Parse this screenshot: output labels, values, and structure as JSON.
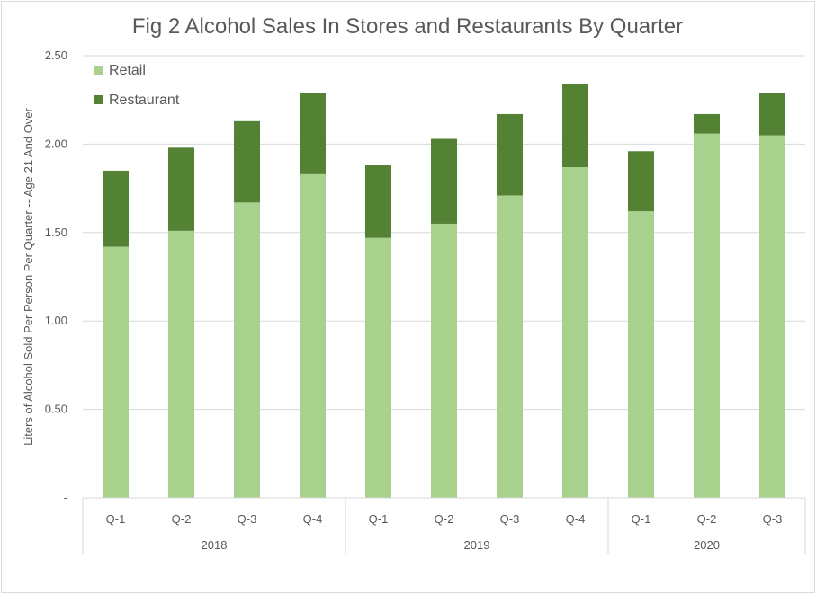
{
  "chart_data": {
    "type": "bar",
    "stacked": true,
    "title": "Fig 2 Alcohol Sales In Stores and Restaurants By Quarter",
    "ylabel": "Liters of Alcohol Sold Per Person Per Quarter -- Age 21 And Over",
    "xlabel": "",
    "ylim": [
      0,
      2.5
    ],
    "yticks": [
      "-",
      "0.50",
      "1.00",
      "1.50",
      "2.00",
      "2.50"
    ],
    "grid": true,
    "legend_position": "top-left",
    "groups": [
      {
        "label": "2018",
        "categories": [
          "Q-1",
          "Q-2",
          "Q-3",
          "Q-4"
        ]
      },
      {
        "label": "2019",
        "categories": [
          "Q-1",
          "Q-2",
          "Q-3",
          "Q-4"
        ]
      },
      {
        "label": "2020",
        "categories": [
          "Q-1",
          "Q-2",
          "Q-3"
        ]
      }
    ],
    "series": [
      {
        "name": "Retail",
        "color": "#a9d18e",
        "values": [
          1.42,
          1.51,
          1.67,
          1.83,
          1.47,
          1.55,
          1.71,
          1.87,
          1.62,
          2.06,
          2.05
        ]
      },
      {
        "name": "Restaurant",
        "color": "#548235",
        "values": [
          0.43,
          0.47,
          0.46,
          0.46,
          0.41,
          0.48,
          0.46,
          0.47,
          0.34,
          0.11,
          0.24
        ]
      }
    ]
  }
}
